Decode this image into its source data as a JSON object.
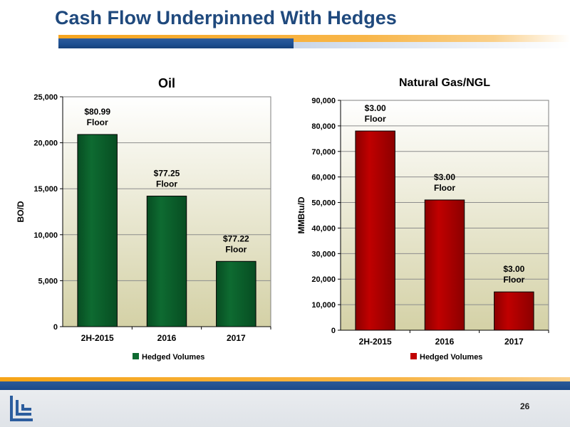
{
  "slide": {
    "title": "Cash Flow Underpinned With Hedges",
    "page_number": "26"
  },
  "colors": {
    "title": "#1f497d",
    "oil_bar": "#0e6b31",
    "gas_bar": "#c00000",
    "accent_blue": "#1d4f91",
    "accent_orange": "#f7a51f"
  },
  "chart_data": [
    {
      "type": "bar",
      "title": "Oil",
      "ylabel": "BO/D",
      "xlabel": "",
      "categories": [
        "2H-2015",
        "2016",
        "2017"
      ],
      "series": [
        {
          "name": "Hedged Volumes",
          "values": [
            20900,
            14200,
            7100
          ]
        }
      ],
      "data_labels": [
        [
          "$80.99",
          "Floor"
        ],
        [
          "$77.25",
          "Floor"
        ],
        [
          "$77.22",
          "Floor"
        ]
      ],
      "ylim": [
        0,
        25000
      ],
      "yticks": [
        0,
        5000,
        10000,
        15000,
        20000,
        25000
      ],
      "ytick_labels": [
        "0",
        "5,000",
        "10,000",
        "15,000",
        "20,000",
        "25,000"
      ],
      "grid": true,
      "legend": "bottom"
    },
    {
      "type": "bar",
      "title": "Natural Gas/NGL",
      "ylabel": "MMBtu/D",
      "xlabel": "",
      "categories": [
        "2H-2015",
        "2016",
        "2017"
      ],
      "series": [
        {
          "name": "Hedged Volumes",
          "values": [
            78000,
            51000,
            15000
          ]
        }
      ],
      "data_labels": [
        [
          "$3.00",
          "Floor"
        ],
        [
          "$3.00",
          "Floor"
        ],
        [
          "$3.00",
          "Floor"
        ]
      ],
      "ylim": [
        0,
        90000
      ],
      "yticks": [
        0,
        10000,
        20000,
        30000,
        40000,
        50000,
        60000,
        70000,
        80000,
        90000
      ],
      "ytick_labels": [
        "0",
        "10,000",
        "20,000",
        "30,000",
        "40,000",
        "50,000",
        "60,000",
        "70,000",
        "80,000",
        "90,000"
      ],
      "grid": true,
      "legend": "bottom"
    }
  ]
}
